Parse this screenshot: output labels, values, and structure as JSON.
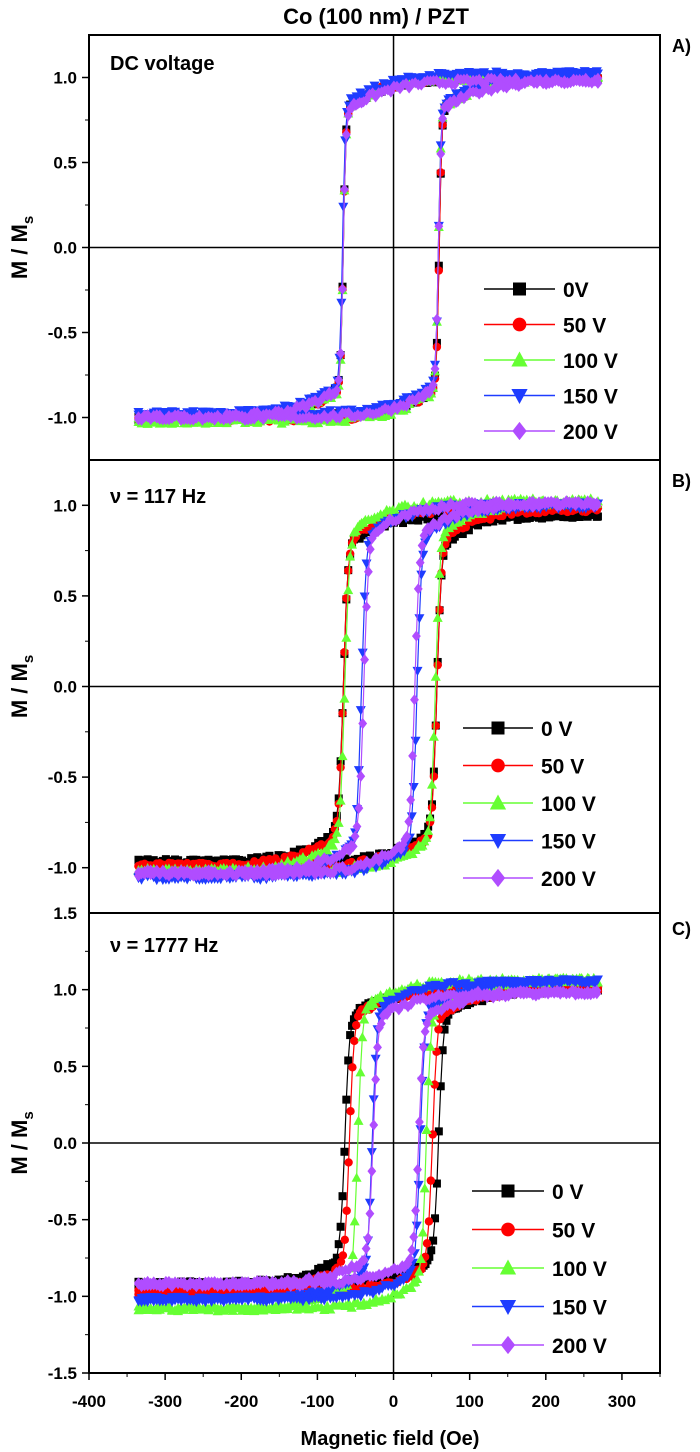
{
  "chart_data": {
    "type": "scatter",
    "title": "Co (100 nm) / PZT",
    "xlabel": "Magnetic field (Oe)",
    "ylabel": "M / M",
    "ylabel_sub": "s",
    "xlim": [
      -400,
      350
    ],
    "xticks": [
      -400,
      -300,
      -200,
      -100,
      0,
      100,
      200,
      300
    ],
    "field_range": [
      -335,
      270
    ],
    "colors": {
      "0V": "#000000",
      "50V": "#ff0000",
      "100V": "#66ff33",
      "150V": "#1e3cff",
      "200V": "#b04dff"
    },
    "panels": [
      {
        "label": "A)",
        "annotation": "DC voltage",
        "ylim": [
          -1.25,
          1.25
        ],
        "yticks": [
          "1.0",
          "0.5",
          "0.0",
          "-0.5",
          "-1.0"
        ],
        "series": [
          {
            "name": "0V",
            "marker": "square",
            "color": "#000000",
            "hc_down": -66,
            "hc_up": 60,
            "m_high": 1.0,
            "m_low": -1.0
          },
          {
            "name": "50 V",
            "marker": "circle",
            "color": "#ff0000",
            "hc_down": -66,
            "hc_up": 60,
            "m_high": 1.0,
            "m_low": -1.01
          },
          {
            "name": "100 V",
            "marker": "triangle-up",
            "color": "#66ff33",
            "hc_down": -66,
            "hc_up": 59,
            "m_high": 1.0,
            "m_low": -1.02
          },
          {
            "name": "150 V",
            "marker": "triangle-down",
            "color": "#1e3cff",
            "hc_down": -67,
            "hc_up": 59,
            "m_high": 1.02,
            "m_low": -0.98
          },
          {
            "name": "200 V",
            "marker": "diamond",
            "color": "#b04dff",
            "hc_down": -66,
            "hc_up": 59,
            "m_high": 0.98,
            "m_low": -1.0
          }
        ]
      },
      {
        "label": "B)",
        "annotation": "ν = 117 Hz",
        "ylim": [
          -1.25,
          1.25
        ],
        "yticks": [
          "1.0",
          "0.5",
          "0.0",
          "-0.5",
          "-1.0"
        ],
        "bottom_tick": "1.5",
        "series": [
          {
            "name": "0 V",
            "marker": "square",
            "color": "#000000",
            "hc_down": -66,
            "hc_up": 57,
            "m_high": 0.95,
            "m_low": -0.97
          },
          {
            "name": "50 V",
            "marker": "circle",
            "color": "#ff0000",
            "hc_down": -66,
            "hc_up": 57,
            "m_high": 0.98,
            "m_low": -0.99
          },
          {
            "name": "100 V",
            "marker": "triangle-up",
            "color": "#66ff33",
            "hc_down": -64,
            "hc_up": 55,
            "m_high": 1.02,
            "m_low": -1.02
          },
          {
            "name": "150 V",
            "marker": "triangle-down",
            "color": "#1e3cff",
            "hc_down": -42,
            "hc_up": 31,
            "m_high": 1.0,
            "m_low": -1.05
          },
          {
            "name": "200 V",
            "marker": "diamond",
            "color": "#b04dff",
            "hc_down": -39,
            "hc_up": 28,
            "m_high": 1.01,
            "m_low": -1.03
          }
        ]
      },
      {
        "label": "C)",
        "annotation": "ν = 1777 Hz",
        "ylim": [
          -1.5,
          1.5
        ],
        "yticks": [
          "1.0",
          "0.5",
          "0.0",
          "-0.5",
          "-1.0",
          "-1.5"
        ],
        "series": [
          {
            "name": "0 V",
            "marker": "square",
            "color": "#000000",
            "hc_down": -64,
            "hc_up": 59,
            "m_high": 1.0,
            "m_low": -0.92
          },
          {
            "name": "50 V",
            "marker": "circle",
            "color": "#ff0000",
            "hc_down": -58,
            "hc_up": 51,
            "m_high": 1.0,
            "m_low": -0.97
          },
          {
            "name": "100 V",
            "marker": "triangle-up",
            "color": "#66ff33",
            "hc_down": -47,
            "hc_up": 43,
            "m_high": 1.06,
            "m_low": -1.08
          },
          {
            "name": "150 V",
            "marker": "triangle-down",
            "color": "#1e3cff",
            "hc_down": -28,
            "hc_up": 35,
            "m_high": 1.05,
            "m_low": -1.02
          },
          {
            "name": "200 V",
            "marker": "diamond",
            "color": "#b04dff",
            "hc_down": -27,
            "hc_up": 33,
            "m_high": 0.98,
            "m_low": -0.92
          }
        ]
      }
    ]
  }
}
